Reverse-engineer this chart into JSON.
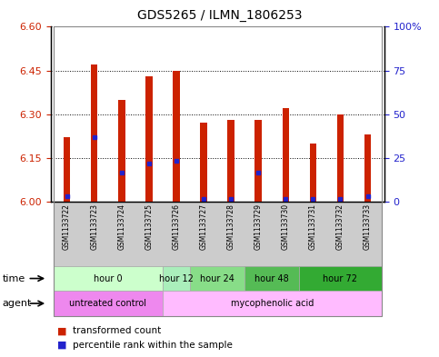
{
  "title": "GDS5265 / ILMN_1806253",
  "samples": [
    "GSM1133722",
    "GSM1133723",
    "GSM1133724",
    "GSM1133725",
    "GSM1133726",
    "GSM1133727",
    "GSM1133728",
    "GSM1133729",
    "GSM1133730",
    "GSM1133731",
    "GSM1133732",
    "GSM1133733"
  ],
  "bar_values": [
    6.22,
    6.47,
    6.35,
    6.43,
    6.45,
    6.27,
    6.28,
    6.28,
    6.32,
    6.2,
    6.3,
    6.23
  ],
  "blue_values": [
    6.02,
    6.22,
    6.1,
    6.13,
    6.14,
    6.01,
    6.01,
    6.1,
    6.01,
    6.01,
    6.01,
    6.02
  ],
  "ylim_left": [
    6.0,
    6.6
  ],
  "yticks_left": [
    6.0,
    6.15,
    6.3,
    6.45,
    6.6
  ],
  "ylim_right": [
    0,
    100
  ],
  "yticks_right": [
    0,
    25,
    50,
    75,
    100
  ],
  "ytick_labels_right": [
    "0",
    "25",
    "50",
    "75",
    "100%"
  ],
  "bar_color": "#cc2200",
  "blue_color": "#2222cc",
  "bar_bottom": 6.0,
  "time_groups": [
    {
      "label": "hour 0",
      "start": 0,
      "end": 4,
      "color": "#ccffcc"
    },
    {
      "label": "hour 12",
      "start": 4,
      "end": 5,
      "color": "#aaeebb"
    },
    {
      "label": "hour 24",
      "start": 5,
      "end": 7,
      "color": "#88dd88"
    },
    {
      "label": "hour 48",
      "start": 7,
      "end": 9,
      "color": "#55bb55"
    },
    {
      "label": "hour 72",
      "start": 9,
      "end": 12,
      "color": "#33aa33"
    }
  ],
  "agent_groups": [
    {
      "label": "untreated control",
      "start": 0,
      "end": 4,
      "color": "#ee88ee"
    },
    {
      "label": "mycophenolic acid",
      "start": 4,
      "end": 12,
      "color": "#ffbbff"
    }
  ],
  "legend_red": "transformed count",
  "legend_blue": "percentile rank within the sample",
  "axis_label_color_left": "#cc2200",
  "axis_label_color_right": "#2222cc",
  "bg_color": "#ffffff"
}
